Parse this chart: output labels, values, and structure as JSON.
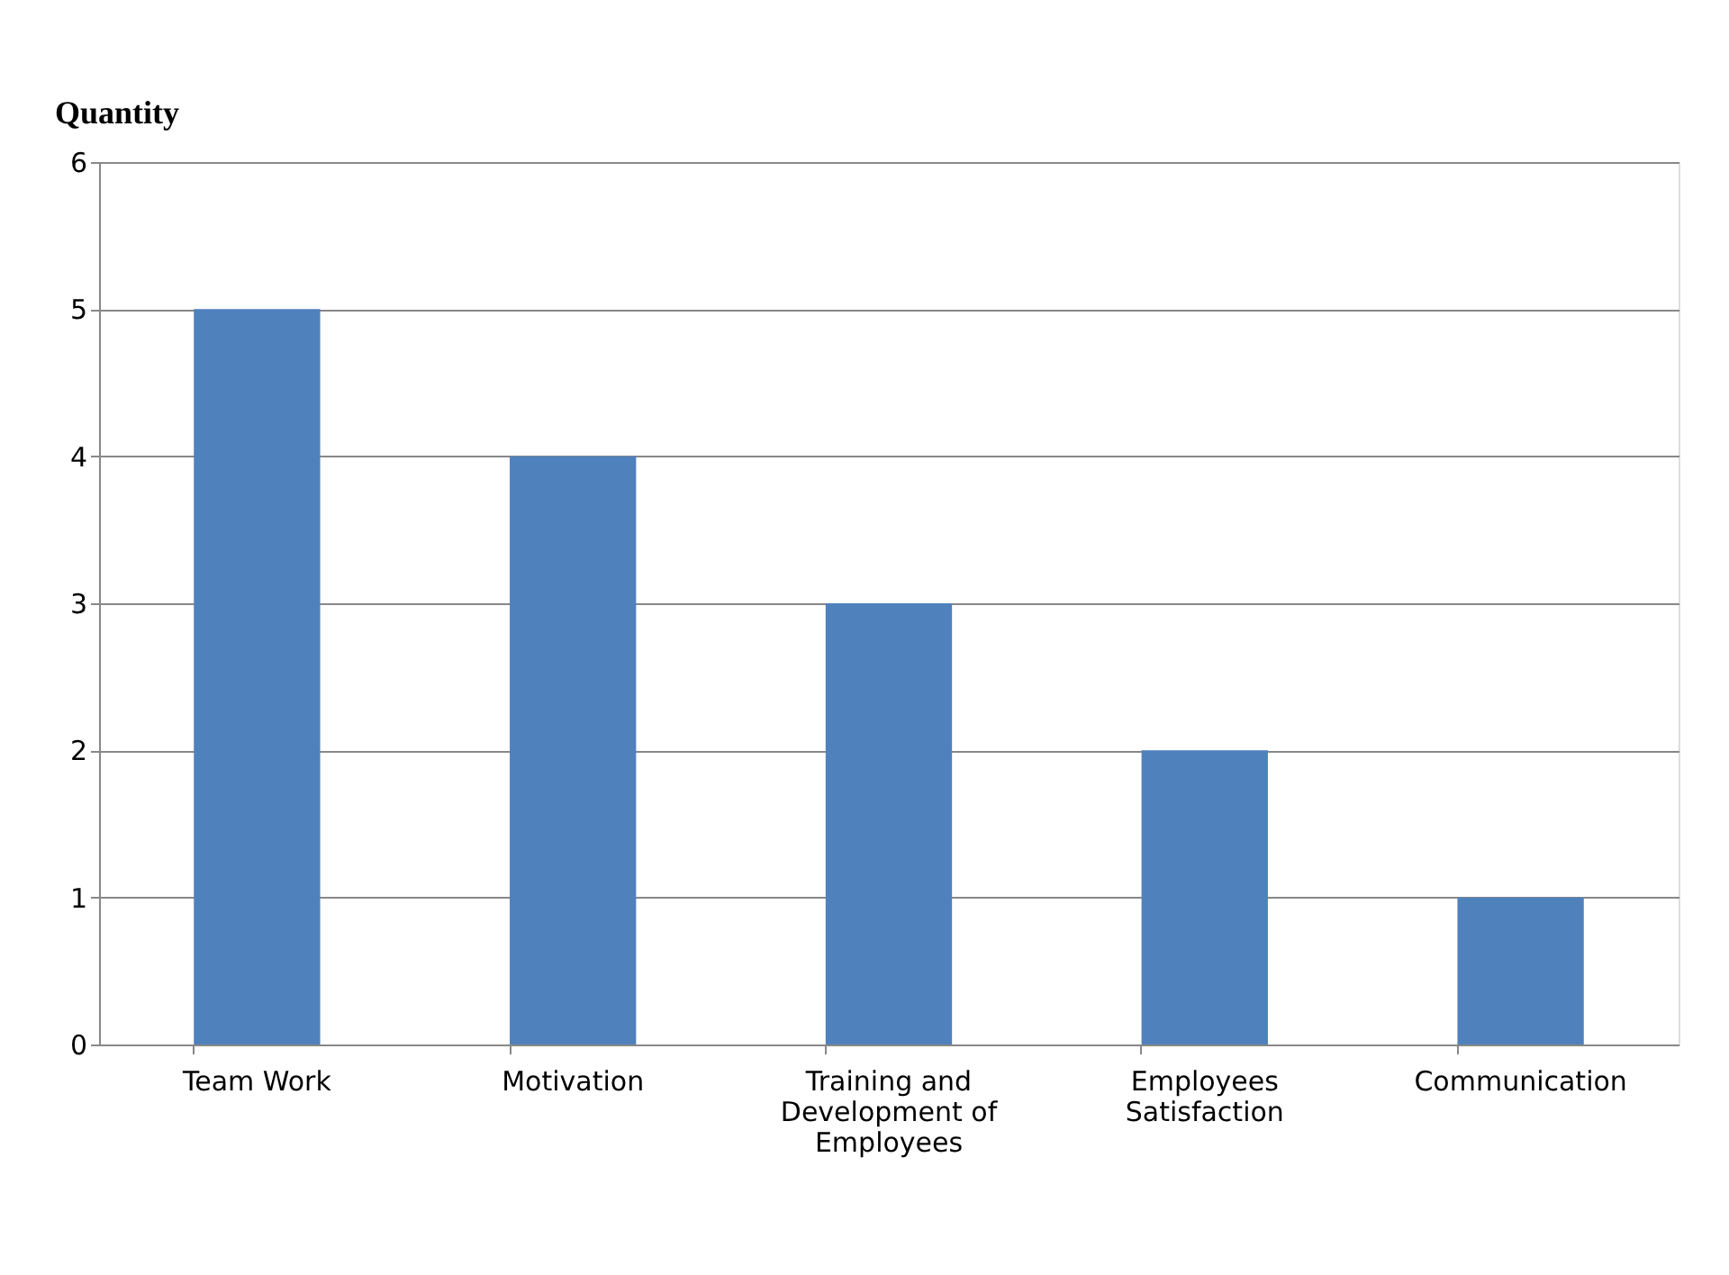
{
  "chart_data": {
    "type": "bar",
    "ylabel": "Quantity",
    "categories": [
      "Team Work",
      "Motivation",
      "Training and Development of Employees",
      "Employees Satisfaction",
      "Communication"
    ],
    "values": [
      5,
      4,
      3,
      2,
      1
    ],
    "color": "#4f81bd",
    "ylim": [
      0,
      6
    ],
    "yticks": [
      0,
      1,
      2,
      3,
      4,
      5,
      6
    ],
    "grid": "y"
  }
}
